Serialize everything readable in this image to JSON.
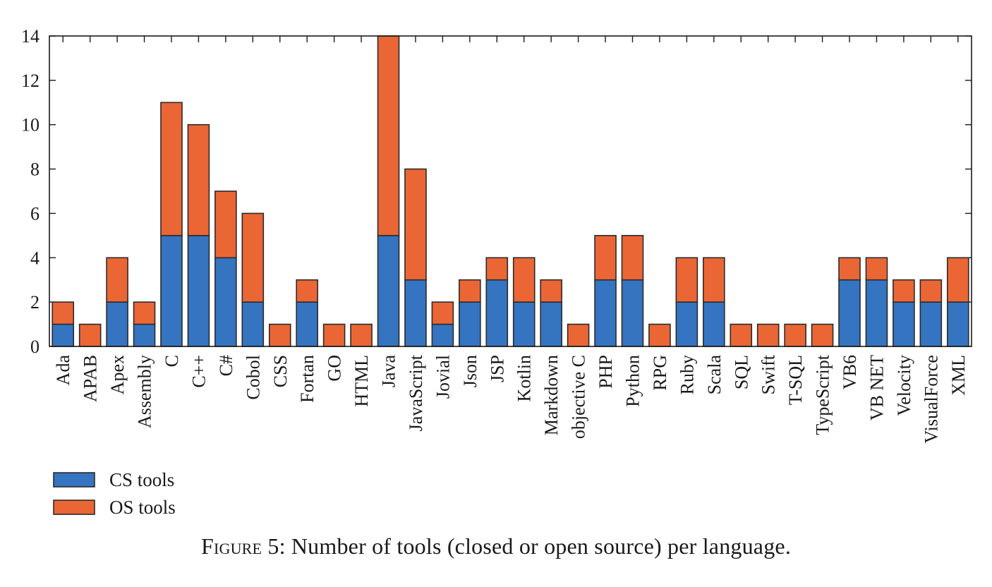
{
  "chart_data": {
    "type": "bar",
    "stacked": true,
    "categories": [
      "Ada",
      "APAB",
      "Apex",
      "Assembly",
      "C",
      "C++",
      "C#",
      "Cobol",
      "CSS",
      "Fortan",
      "GO",
      "HTML",
      "Java",
      "JavaScript",
      "Jovial",
      "Json",
      "JSP",
      "Kotlin",
      "Markdown",
      "objective C",
      "PHP",
      "Python",
      "RPG",
      "Ruby",
      "Scala",
      "SQL",
      "Swift",
      "T-SQL",
      "TypeScript",
      "VB6",
      "VB NET",
      "Velocity",
      "VisualForce",
      "XML"
    ],
    "series": [
      {
        "name": "CS tools",
        "color": "#3574c0",
        "values": [
          1,
          0,
          2,
          1,
          5,
          5,
          4,
          2,
          0,
          2,
          0,
          0,
          5,
          3,
          1,
          2,
          3,
          2,
          2,
          0,
          3,
          3,
          0,
          2,
          2,
          0,
          0,
          0,
          0,
          3,
          3,
          2,
          2,
          2
        ]
      },
      {
        "name": "OS tools",
        "color": "#eb6635",
        "values": [
          1,
          1,
          2,
          1,
          6,
          5,
          3,
          4,
          1,
          1,
          1,
          1,
          9,
          5,
          1,
          1,
          1,
          2,
          1,
          1,
          2,
          2,
          1,
          2,
          2,
          1,
          1,
          1,
          1,
          1,
          1,
          1,
          1,
          2
        ]
      }
    ],
    "ylim": [
      0,
      14
    ],
    "yticks": [
      0,
      2,
      4,
      6,
      8,
      10,
      12,
      14
    ],
    "xlabel": "",
    "ylabel": "",
    "grid": false,
    "legend_position": "bottom-left"
  },
  "caption": {
    "lead": "Figure 5:",
    "text": " Number of tools (closed or open source) per language."
  }
}
